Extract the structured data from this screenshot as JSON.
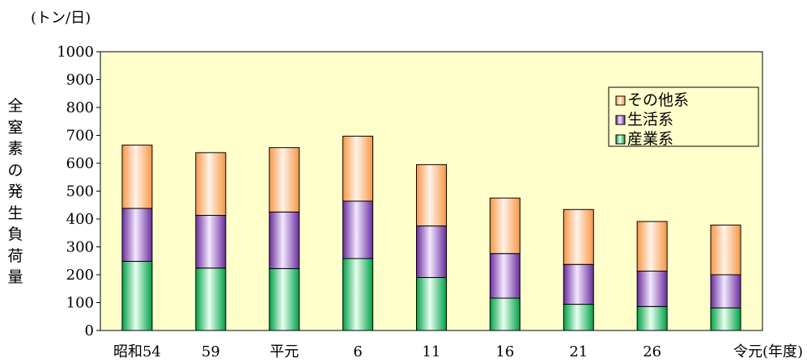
{
  "unit_label": "(トン/日)",
  "chart_data": {
    "type": "bar",
    "stacked": true,
    "title": "",
    "xlabel": "",
    "ylabel": "全窒素の発生負荷量",
    "ylim": [
      0,
      1000
    ],
    "yticks": [
      0,
      100,
      200,
      300,
      400,
      500,
      600,
      700,
      800,
      900,
      1000
    ],
    "categories": [
      "昭和54",
      "59",
      "平元",
      "6",
      "11",
      "16",
      "21",
      "26",
      "令元(年度)"
    ],
    "series": [
      {
        "name": "産業系",
        "values": [
          248,
          224,
          222,
          258,
          190,
          116,
          94,
          86,
          81
        ]
      },
      {
        "name": "生活系",
        "values": [
          190,
          189,
          203,
          206,
          185,
          160,
          143,
          127,
          119
        ]
      },
      {
        "name": "その他系",
        "values": [
          227,
          225,
          231,
          233,
          220,
          199,
          197,
          178,
          178
        ]
      }
    ],
    "legend_position": "top-right",
    "grid": false,
    "plot_background": "#ffffcc",
    "colors": {
      "産業系": "#00b050",
      "生活系": "#7030a0",
      "その他系": "#f79646"
    }
  }
}
